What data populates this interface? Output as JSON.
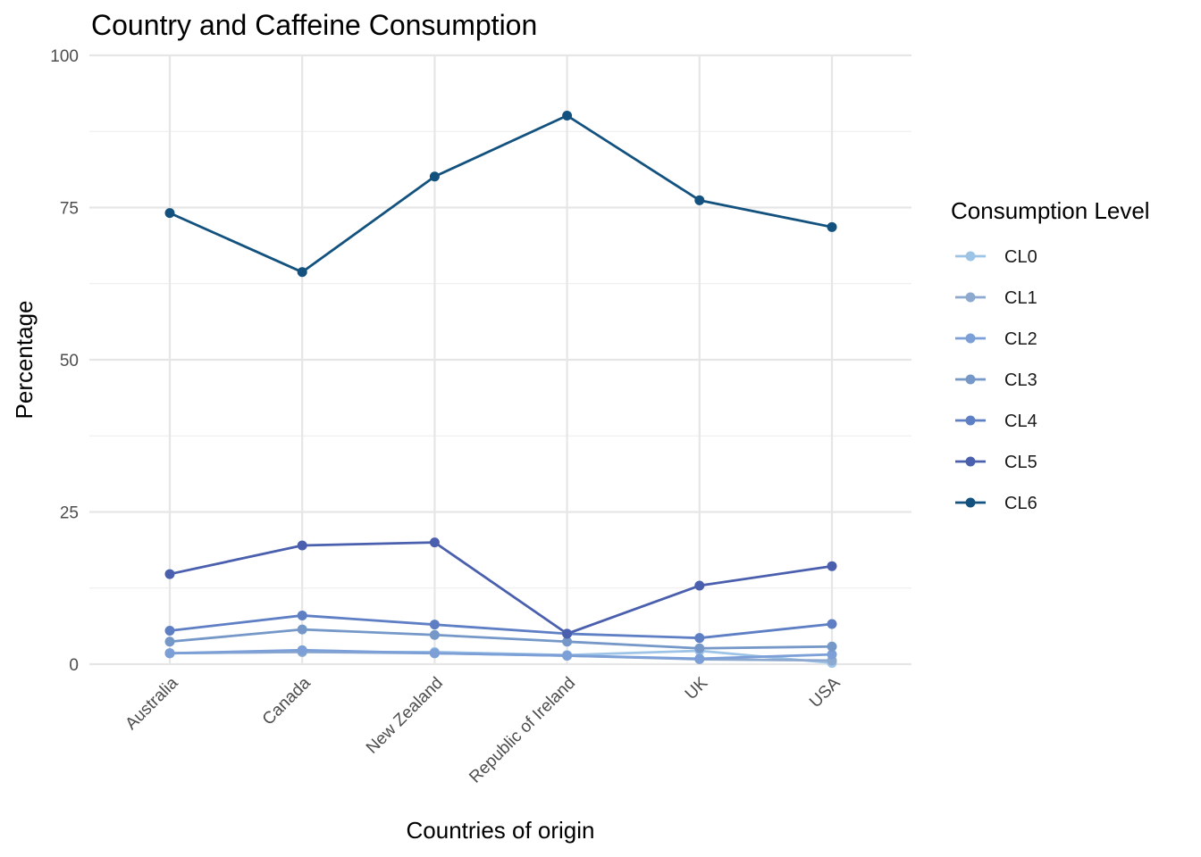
{
  "chart_data": {
    "type": "line",
    "title": "Country and Caffeine Consumption",
    "xlabel": "Countries of origin",
    "ylabel": "Percentage",
    "categories": [
      "Australia",
      "Canada",
      "New Zealand",
      "Republic of Ireland",
      "UK",
      "USA"
    ],
    "ylim": [
      0,
      100
    ],
    "yticks": [
      0,
      25,
      50,
      75,
      100
    ],
    "grid": true,
    "legend": {
      "title": "Consumption Level",
      "position": "right"
    },
    "series": [
      {
        "name": "CL0",
        "color": "#9dc3e6",
        "values": [
          1.8,
          2.0,
          2.0,
          1.5,
          2.2,
          0.2
        ]
      },
      {
        "name": "CL1",
        "color": "#8ea9cf",
        "values": [
          1.8,
          2.0,
          1.8,
          1.4,
          0.8,
          0.6
        ]
      },
      {
        "name": "CL2",
        "color": "#7b9fd6",
        "values": [
          1.8,
          2.3,
          1.8,
          1.4,
          0.9,
          1.6
        ]
      },
      {
        "name": "CL3",
        "color": "#7598c8",
        "values": [
          3.7,
          5.7,
          4.8,
          3.7,
          2.6,
          2.9
        ]
      },
      {
        "name": "CL4",
        "color": "#5f7fc5",
        "values": [
          5.5,
          8.0,
          6.5,
          5.0,
          4.3,
          6.6
        ]
      },
      {
        "name": "CL5",
        "color": "#4a5fad",
        "values": [
          14.8,
          19.5,
          20.0,
          5.0,
          12.9,
          16.1
        ]
      },
      {
        "name": "CL6",
        "color": "#13527f",
        "values": [
          74.1,
          64.4,
          80.1,
          90.1,
          76.2,
          71.8
        ]
      }
    ]
  }
}
